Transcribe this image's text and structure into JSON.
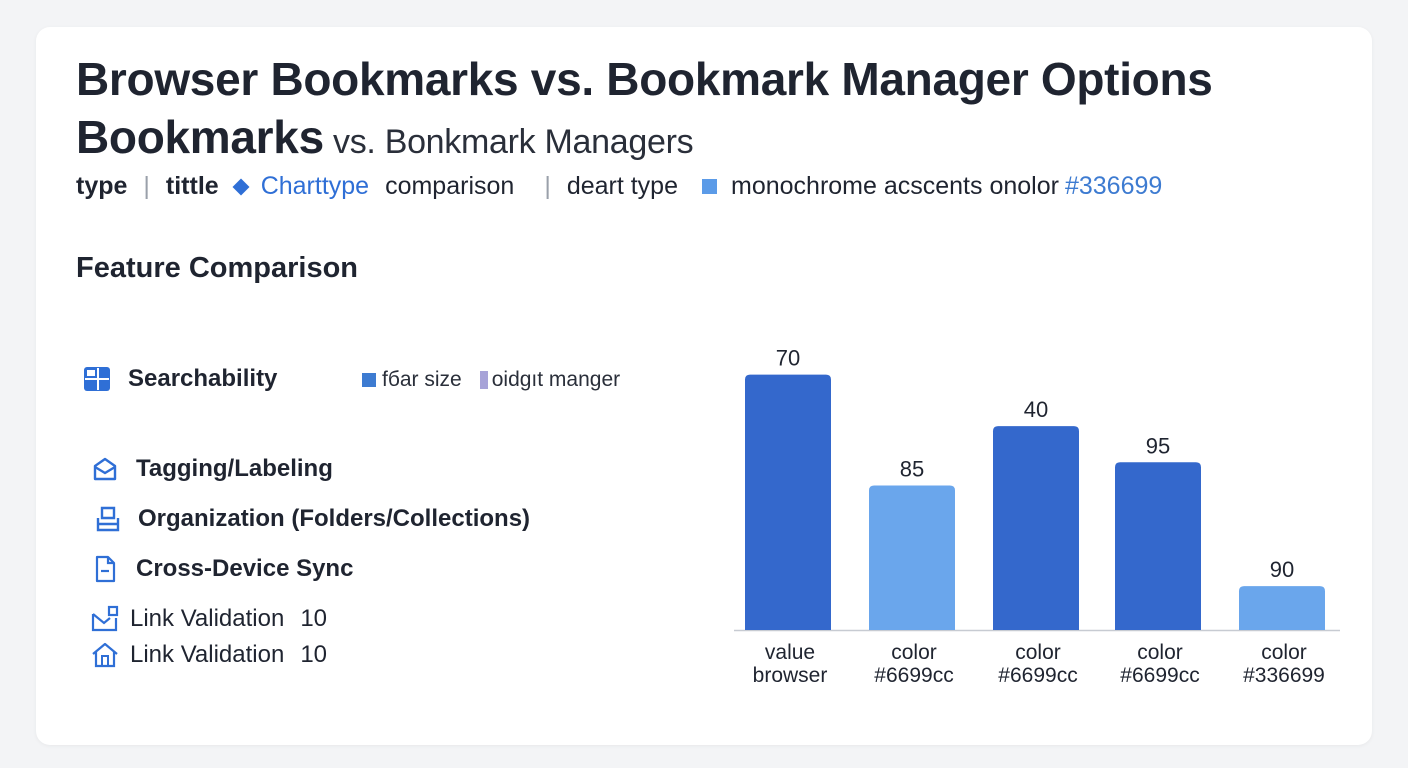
{
  "header": {
    "title_line1": "Browser Bookmarks vs. Bookmark Manager Options",
    "title_line2_bold": "Bookmarks",
    "title_line2_rest": " vs. Bonkmark Managers"
  },
  "meta": {
    "type_label": "type",
    "title_label": "tittle",
    "chart_type_label": "Charttype",
    "comparison": "comparison",
    "deart_type": "deart type",
    "accent_text": "monochrome acscents onolor",
    "accent_color_code": "#336699"
  },
  "section": {
    "title": "Feature Comparison"
  },
  "features": [
    {
      "label": "Searchability",
      "icon": "grid-icon"
    },
    {
      "label": "Tagging/Labeling",
      "icon": "tag-icon"
    },
    {
      "label": "Organization (Folders/Collections)",
      "icon": "folder-icon"
    },
    {
      "label": "Cross-Device Sync",
      "icon": "document-icon"
    },
    {
      "label": "Link Validation",
      "value": "10",
      "icon": "mail-check-icon"
    },
    {
      "label": "Link Validation",
      "value": "10",
      "icon": "home-icon"
    }
  ],
  "legend": {
    "item1": "fбar size",
    "item2": "oidgıt manger"
  },
  "chart_data": {
    "type": "bar",
    "categories": [
      [
        "value",
        "browser"
      ],
      [
        "color",
        "#6699cc"
      ],
      [
        "color",
        "#6699cc"
      ],
      [
        "color",
        "#6699cc"
      ],
      [
        "color",
        "#336699"
      ]
    ],
    "values": [
      70,
      85,
      40,
      95,
      90
    ],
    "display_levels": [
      0.99,
      0.56,
      0.79,
      0.65,
      0.17
    ],
    "bar_colors": [
      "#3468cc",
      "#6aa6ec",
      "#3468cc",
      "#3468cc",
      "#6aa6ec"
    ],
    "axis_color": "#c7cbd2",
    "title": "",
    "xlabel": "",
    "ylabel": "",
    "grid": false
  }
}
